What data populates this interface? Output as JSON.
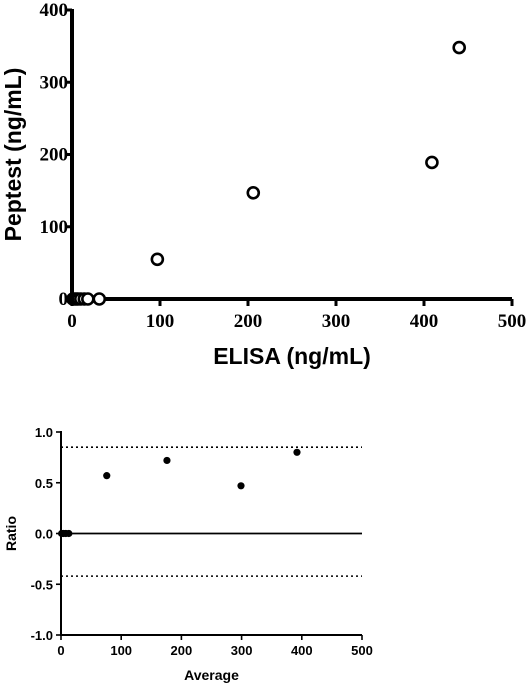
{
  "chart_data": [
    {
      "type": "scatter",
      "xlabel": "ELISA (ng/mL)",
      "ylabel": "Peptest (ng/mL)",
      "xlim": [
        0,
        500
      ],
      "ylim": [
        0,
        400
      ],
      "xticks": [
        0,
        100,
        200,
        300,
        400,
        500
      ],
      "yticks": [
        0,
        100,
        200,
        300,
        400
      ],
      "tick_labels_x": [
        "0",
        "100",
        "200",
        "300",
        "400",
        "500"
      ],
      "tick_labels_y": [
        "0",
        "100",
        "200",
        "300",
        "400"
      ],
      "marker": "open-circle",
      "points": [
        {
          "x": 1,
          "y": 0
        },
        {
          "x": 3,
          "y": 0
        },
        {
          "x": 5,
          "y": 0
        },
        {
          "x": 7,
          "y": 0
        },
        {
          "x": 10,
          "y": 0
        },
        {
          "x": 14,
          "y": 0
        },
        {
          "x": 18,
          "y": 0
        },
        {
          "x": 31,
          "y": 0
        },
        {
          "x": 97,
          "y": 55
        },
        {
          "x": 206,
          "y": 147
        },
        {
          "x": 409,
          "y": 189
        },
        {
          "x": 440,
          "y": 348
        }
      ]
    },
    {
      "type": "scatter",
      "xlabel": "Average",
      "ylabel": "Ratio",
      "xlim": [
        0,
        500
      ],
      "ylim": [
        -1.0,
        1.0
      ],
      "xticks": [
        0,
        100,
        200,
        300,
        400,
        500
      ],
      "yticks": [
        -1.0,
        -0.5,
        0.0,
        0.5,
        1.0
      ],
      "tick_labels_x": [
        "0",
        "100",
        "200",
        "300",
        "400",
        "500"
      ],
      "tick_labels_y": [
        "-1.0",
        "-0.5",
        "0.0",
        "0.5",
        "1.0"
      ],
      "marker": "filled-circle",
      "reference_lines": [
        {
          "y": 0.85,
          "style": "dotted"
        },
        {
          "y": 0.0,
          "style": "solid"
        },
        {
          "y": -0.42,
          "style": "dotted"
        }
      ],
      "points": [
        {
          "x": 1,
          "y": 0
        },
        {
          "x": 4,
          "y": 0
        },
        {
          "x": 8,
          "y": 0
        },
        {
          "x": 13,
          "y": 0
        },
        {
          "x": 76,
          "y": 0.57
        },
        {
          "x": 176,
          "y": 0.72
        },
        {
          "x": 299,
          "y": 0.47
        },
        {
          "x": 392,
          "y": 0.8
        }
      ]
    }
  ]
}
